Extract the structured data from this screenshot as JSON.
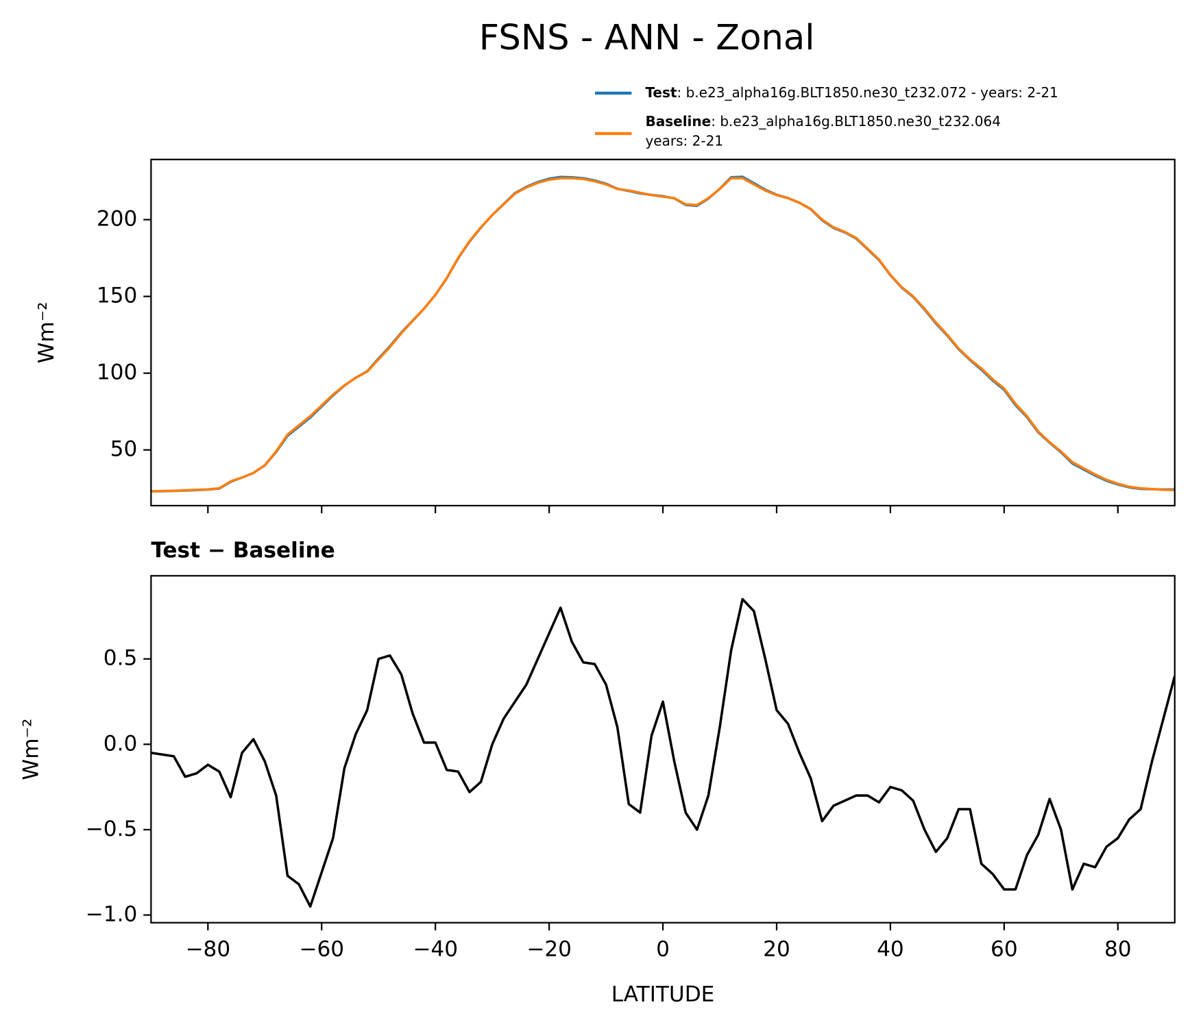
{
  "chart_data": [
    {
      "type": "line",
      "title": "FSNS - ANN - Zonal",
      "ylabel": "Wm⁻²",
      "x": [
        -90,
        -88,
        -86,
        -84,
        -82,
        -80,
        -78,
        -76,
        -74,
        -72,
        -70,
        -68,
        -66,
        -64,
        -62,
        -60,
        -58,
        -56,
        -54,
        -52,
        -50,
        -48,
        -46,
        -44,
        -42,
        -40,
        -38,
        -36,
        -34,
        -32,
        -30,
        -28,
        -26,
        -24,
        -22,
        -20,
        -18,
        -16,
        -14,
        -12,
        -10,
        -8,
        -6,
        -4,
        -2,
        0,
        2,
        4,
        6,
        8,
        10,
        12,
        14,
        16,
        18,
        20,
        22,
        24,
        26,
        28,
        30,
        32,
        34,
        36,
        38,
        40,
        42,
        44,
        46,
        48,
        50,
        52,
        54,
        56,
        58,
        60,
        62,
        64,
        66,
        68,
        70,
        72,
        74,
        76,
        78,
        80,
        82,
        84,
        86,
        88,
        90
      ],
      "series": [
        {
          "name": "Test",
          "case": [
            ": b.e23_alpha16g.BLT1850.ne30_t232.072 - years: 2-21"
          ],
          "color": "#1f77b4",
          "values": [
            23.0,
            23.1,
            23.3,
            23.5,
            23.8,
            24.2,
            24.8,
            29.2,
            32.0,
            35.0,
            39.9,
            48.7,
            59.2,
            65.2,
            71.1,
            78.3,
            85.5,
            91.9,
            97.1,
            101.2,
            109.5,
            117.5,
            126.4,
            134.2,
            142.0,
            151.0,
            161.9,
            174.8,
            185.7,
            194.8,
            203.0,
            210.2,
            217.3,
            221.4,
            224.5,
            226.7,
            227.8,
            227.6,
            227.0,
            225.5,
            223.4,
            220.1,
            218.7,
            217.1,
            216.1,
            215.3,
            213.9,
            209.6,
            209.0,
            213.7,
            220.1,
            227.6,
            227.9,
            223.8,
            219.5,
            216.2,
            214.1,
            211.0,
            206.8,
            199.6,
            194.6,
            191.7,
            187.7,
            180.7,
            173.7,
            163.8,
            155.7,
            149.7,
            141.5,
            132.4,
            124.5,
            115.6,
            108.6,
            102.3,
            95.2,
            89.2,
            79.2,
            71.4,
            61.5,
            54.7,
            48.5,
            41.2,
            37.3,
            33.3,
            29.9,
            27.5,
            25.6,
            24.6,
            24.4,
            24.2,
            24.2
          ]
        },
        {
          "name": "Baseline",
          "case": [
            ": b.e23_alpha16g.BLT1850.ne30_t232.064",
            "years: 2-21"
          ],
          "color": "#ff7f0e",
          "values": [
            23,
            23.2,
            23.4,
            23.7,
            24,
            24.3,
            25,
            29.5,
            32,
            35,
            40,
            49,
            60,
            66,
            72,
            79,
            86,
            92,
            97,
            101,
            109,
            117,
            126,
            134,
            142,
            151,
            162,
            175,
            186,
            195,
            203,
            210,
            217,
            221,
            224,
            226,
            227,
            227,
            226.5,
            225,
            223,
            220,
            219,
            217.5,
            216,
            215,
            214,
            210,
            209.5,
            214,
            220,
            227,
            227,
            223,
            219,
            216,
            214,
            211,
            207,
            200,
            195,
            192,
            188,
            181,
            174,
            164,
            156,
            150,
            142,
            133,
            125,
            116,
            109,
            103,
            96,
            90,
            80,
            72,
            62,
            55,
            49,
            42,
            38,
            34,
            30.5,
            28,
            26,
            25,
            24.5,
            24,
            23.8
          ]
        }
      ],
      "xlim": [
        -90,
        90
      ],
      "xticks": [
        -80,
        -60,
        -40,
        -20,
        0,
        20,
        40,
        60,
        80
      ],
      "ylim": [
        13.7,
        239.2
      ],
      "yticks": [
        50,
        100,
        150,
        200
      ]
    },
    {
      "type": "line",
      "title": "Test − Baseline",
      "ylabel": "Wm⁻²",
      "xlabel": "LATITUDE",
      "x": [
        -90,
        -88,
        -86,
        -84,
        -82,
        -80,
        -78,
        -76,
        -74,
        -72,
        -70,
        -68,
        -66,
        -64,
        -62,
        -60,
        -58,
        -56,
        -54,
        -52,
        -50,
        -48,
        -46,
        -44,
        -42,
        -40,
        -38,
        -36,
        -34,
        -32,
        -30,
        -28,
        -26,
        -24,
        -22,
        -20,
        -18,
        -16,
        -14,
        -12,
        -10,
        -8,
        -6,
        -4,
        -2,
        0,
        2,
        4,
        6,
        8,
        10,
        12,
        14,
        16,
        18,
        20,
        22,
        24,
        26,
        28,
        30,
        32,
        34,
        36,
        38,
        40,
        42,
        44,
        46,
        48,
        50,
        52,
        54,
        56,
        58,
        60,
        62,
        64,
        66,
        68,
        70,
        72,
        74,
        76,
        78,
        80,
        82,
        84,
        86,
        88,
        90
      ],
      "color": "#000000",
      "values": [
        -0.05,
        -0.06,
        -0.07,
        -0.19,
        -0.17,
        -0.12,
        -0.16,
        -0.31,
        -0.05,
        0.03,
        -0.1,
        -0.3,
        -0.77,
        -0.82,
        -0.95,
        -0.75,
        -0.55,
        -0.14,
        0.06,
        0.2,
        0.5,
        0.52,
        0.41,
        0.18,
        0.01,
        0.01,
        -0.15,
        -0.16,
        -0.28,
        -0.22,
        0.0,
        0.15,
        0.25,
        0.35,
        0.5,
        0.65,
        0.8,
        0.6,
        0.48,
        0.47,
        0.35,
        0.1,
        -0.35,
        -0.4,
        0.05,
        0.25,
        -0.1,
        -0.4,
        -0.5,
        -0.3,
        0.1,
        0.55,
        0.85,
        0.78,
        0.5,
        0.2,
        0.12,
        -0.05,
        -0.2,
        -0.45,
        -0.36,
        -0.33,
        -0.3,
        -0.3,
        -0.34,
        -0.25,
        -0.27,
        -0.33,
        -0.5,
        -0.63,
        -0.55,
        -0.38,
        -0.38,
        -0.7,
        -0.76,
        -0.85,
        -0.85,
        -0.65,
        -0.53,
        -0.32,
        -0.5,
        -0.85,
        -0.7,
        -0.72,
        -0.6,
        -0.55,
        -0.44,
        -0.38,
        -0.1,
        0.15,
        0.4
      ],
      "xlim": [
        -90,
        90
      ],
      "xticks": [
        {
          "value": -80,
          "label": "−80"
        },
        {
          "value": -60,
          "label": "−60"
        },
        {
          "value": -40,
          "label": "−40"
        },
        {
          "value": -20,
          "label": "−20"
        },
        0,
        20,
        40,
        60,
        80
      ],
      "ylim": [
        -1.045,
        0.987
      ],
      "yticks": [
        {
          "value": -1.0,
          "label": "−1.0"
        },
        {
          "value": -0.5,
          "label": "−0.5"
        },
        {
          "value": 0.0,
          "label": "0.0"
        },
        0.5
      ]
    }
  ]
}
